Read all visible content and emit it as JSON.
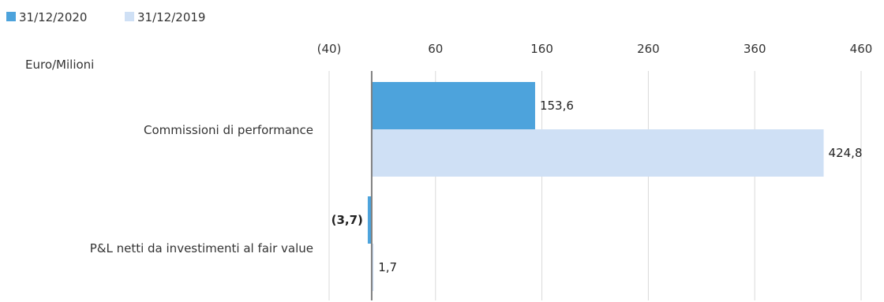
{
  "chart_data": {
    "type": "bar",
    "orientation": "horizontal",
    "unit_label": "Euro/Milioni",
    "categories": [
      "Commissioni di performance",
      "P&L netti da investimenti al fair value"
    ],
    "series": [
      {
        "name": "31/12/2020",
        "color": "#4da3dc",
        "values": [
          153.6,
          -3.7
        ],
        "labels": [
          "153,6",
          "(3,7)"
        ]
      },
      {
        "name": "31/12/2019",
        "color": "#cfe0f5",
        "values": [
          424.8,
          1.7
        ],
        "labels": [
          "424,8",
          "1,7"
        ]
      }
    ],
    "xlim": [
      -40,
      460
    ],
    "x_ticks": [
      -40,
      60,
      160,
      260,
      360,
      460
    ],
    "x_tick_labels": [
      "(40)",
      "60",
      "160",
      "260",
      "360",
      "460"
    ],
    "axis_position": "top",
    "grid": true,
    "legend": "top-left",
    "axis_color": "#7f7f7f",
    "grid_color": "#d9d9d9"
  }
}
